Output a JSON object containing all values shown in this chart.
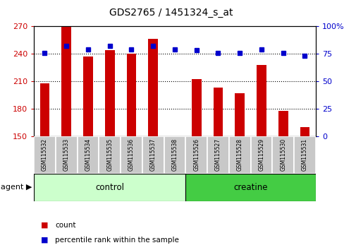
{
  "title": "GDS2765 / 1451324_s_at",
  "samples": [
    "GSM115532",
    "GSM115533",
    "GSM115534",
    "GSM115535",
    "GSM115536",
    "GSM115537",
    "GSM115538",
    "GSM115526",
    "GSM115527",
    "GSM115528",
    "GSM115529",
    "GSM115530",
    "GSM115531"
  ],
  "bar_vals": [
    208,
    270,
    237,
    244,
    240,
    256,
    150,
    212,
    203,
    197,
    228,
    178,
    160
  ],
  "pct_vals": [
    76,
    82,
    79,
    82,
    79,
    82,
    79,
    78,
    76,
    76,
    79,
    76,
    73
  ],
  "ymin": 150,
  "ymax": 270,
  "yticks_left": [
    150,
    180,
    210,
    240,
    270
  ],
  "yticks_right": [
    0,
    25,
    50,
    75,
    100
  ],
  "pct_min": 0,
  "pct_max": 100,
  "bar_color": "#cc0000",
  "dot_color": "#0000cc",
  "control_color": "#ccffcc",
  "creatine_color": "#44cc44",
  "control_label": "control",
  "creatine_label": "creatine",
  "agent_label": "agent",
  "legend_count": "count",
  "legend_percentile": "percentile rank within the sample",
  "label_bg_color": "#c8c8c8",
  "n_control": 7,
  "n_creatine": 6
}
